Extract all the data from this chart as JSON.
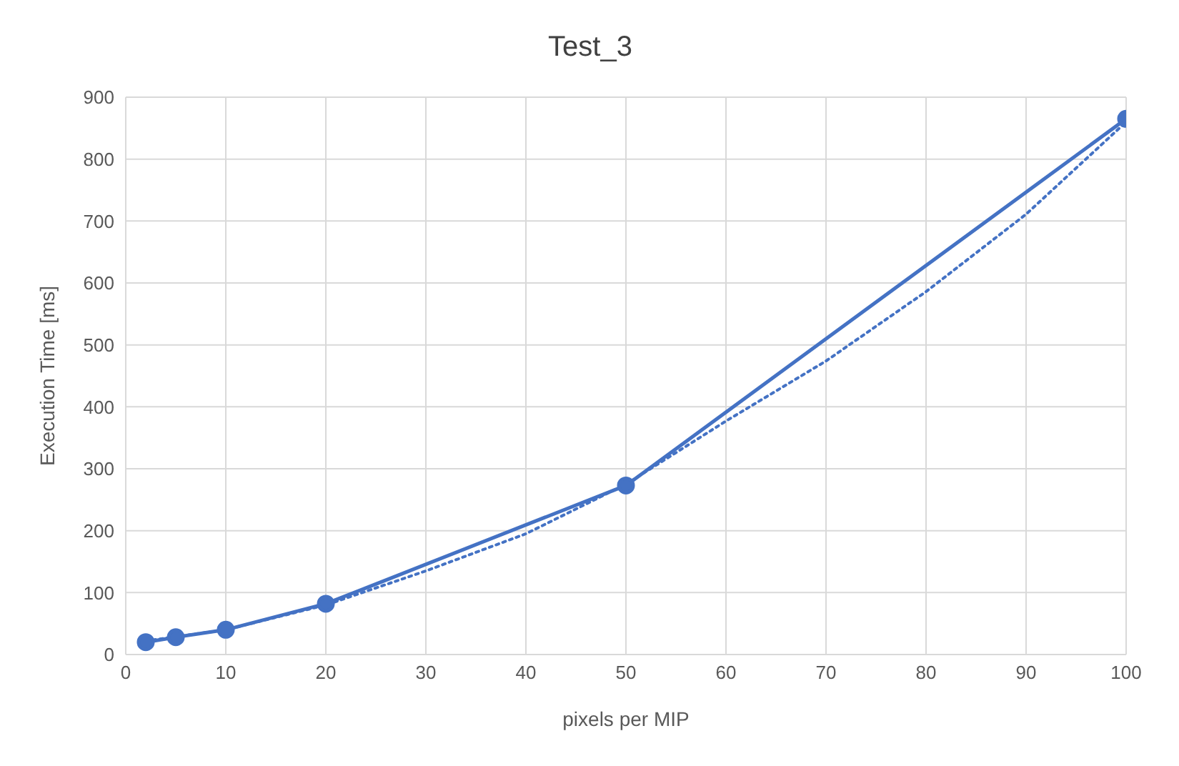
{
  "chart_data": {
    "type": "line",
    "title": "Test_3",
    "xlabel": "pixels per MIP",
    "ylabel": "Execution Time [ms]",
    "xlim": [
      0,
      100
    ],
    "xticks": [
      0,
      10,
      20,
      30,
      40,
      50,
      60,
      70,
      80,
      90,
      100
    ],
    "ylim": [
      0,
      900
    ],
    "yticks": [
      0,
      100,
      200,
      300,
      400,
      500,
      600,
      700,
      800,
      900
    ],
    "grid": true,
    "legend": false,
    "series": [
      {
        "color": "#4472c4",
        "x": [
          2,
          5,
          10,
          20,
          50,
          100
        ],
        "values": [
          20,
          28,
          40,
          82,
          273,
          865
        ],
        "marker": "circle",
        "line_style": "solid"
      },
      {
        "color": "#4472c4",
        "x": [
          2,
          10,
          20,
          30,
          40,
          50,
          60,
          70,
          80,
          90,
          100
        ],
        "values": [
          22,
          40,
          80,
          135,
          195,
          275,
          377,
          474,
          586,
          711,
          860
        ],
        "marker": "none",
        "line_style": "dotted"
      }
    ]
  }
}
